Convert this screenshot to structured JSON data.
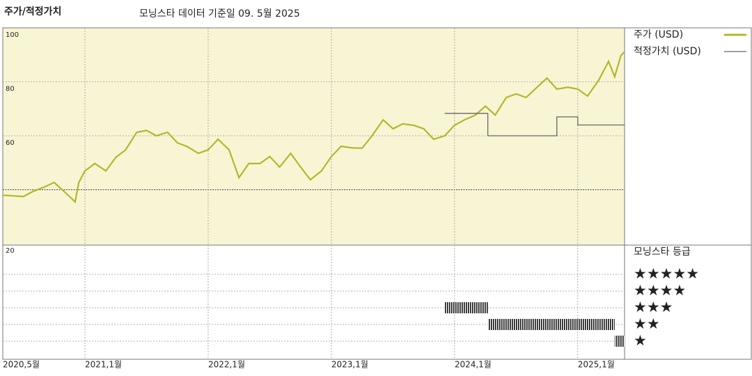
{
  "chart_data": {
    "type": "line",
    "title": "주가/적정가치",
    "subtitle": "모닝스타 데이터 기준일 09. 5월 2025",
    "xlim": [
      2020.333,
      2025.38
    ],
    "xticks": [
      {
        "value": 2020.333,
        "label": "2020,5월"
      },
      {
        "value": 2021,
        "label": "2021,1월"
      },
      {
        "value": 2022,
        "label": "2022,1월"
      },
      {
        "value": 2023,
        "label": "2023,1월"
      },
      {
        "value": 2024,
        "label": "2024,1월"
      },
      {
        "value": 2025,
        "label": "2025,1월"
      }
    ],
    "ylim": [
      20,
      100
    ],
    "yticks": [
      20,
      60,
      80,
      100
    ],
    "reference_line": 40,
    "grid": true,
    "series": [
      {
        "name": "주가 (USD)",
        "color": "#b3b72a",
        "x": [
          2020.333,
          2020.5,
          2020.58,
          2020.67,
          2020.75,
          2020.83,
          2020.92,
          2020.95,
          2021.0,
          2021.08,
          2021.17,
          2021.25,
          2021.33,
          2021.42,
          2021.5,
          2021.58,
          2021.67,
          2021.75,
          2021.83,
          2021.92,
          2022.0,
          2022.08,
          2022.17,
          2022.25,
          2022.33,
          2022.42,
          2022.5,
          2022.58,
          2022.67,
          2022.75,
          2022.83,
          2022.92,
          2023.0,
          2023.08,
          2023.17,
          2023.25,
          2023.33,
          2023.42,
          2023.5,
          2023.58,
          2023.67,
          2023.75,
          2023.83,
          2023.92,
          2024.0,
          2024.08,
          2024.17,
          2024.25,
          2024.33,
          2024.42,
          2024.5,
          2024.58,
          2024.67,
          2024.75,
          2024.83,
          2024.92,
          2025.0,
          2025.08,
          2025.17,
          2025.25,
          2025.3,
          2025.35,
          2025.375
        ],
        "values": [
          38,
          37.5,
          39.4,
          41,
          42.7,
          39.4,
          35.5,
          42.7,
          47,
          49.7,
          47,
          52,
          54.8,
          61.3,
          62,
          60,
          61.3,
          57.4,
          56,
          53.5,
          54.8,
          58.7,
          54.8,
          44.5,
          49.7,
          49.7,
          52.3,
          48.4,
          53.5,
          48.4,
          43.7,
          47,
          52.3,
          56.1,
          55.5,
          55.4,
          60,
          65.9,
          62.6,
          64.4,
          63.9,
          62.6,
          58.7,
          60,
          63.9,
          65.9,
          67.7,
          71,
          67.7,
          74.2,
          75.5,
          74.2,
          78,
          81.4,
          77.3,
          78,
          77.3,
          74.7,
          80.6,
          87.6,
          81.9,
          89.7,
          91
        ]
      },
      {
        "name": "적정가치 (USD)",
        "color": "#666666",
        "x": [
          2023.92,
          2024.27,
          2024.27,
          2024.83,
          2024.83,
          2025.0,
          2025.0,
          2025.38
        ],
        "values": [
          68.3,
          68.3,
          60,
          60,
          67,
          67,
          64,
          64
        ]
      }
    ],
    "rating_title": "모닝스타 등급",
    "rating_labels": [
      "★★★★★",
      "★★★★",
      "★★★",
      "★★",
      "★"
    ],
    "rating_levels": [
      5,
      4,
      3,
      2,
      1
    ],
    "ratings": [
      {
        "stars": 3,
        "start": 2023.92,
        "end": 2024.27
      },
      {
        "stars": 2,
        "start": 2024.27,
        "end": 2025.3
      },
      {
        "stars": 1,
        "start": 2025.3,
        "end": 2025.38
      }
    ]
  }
}
